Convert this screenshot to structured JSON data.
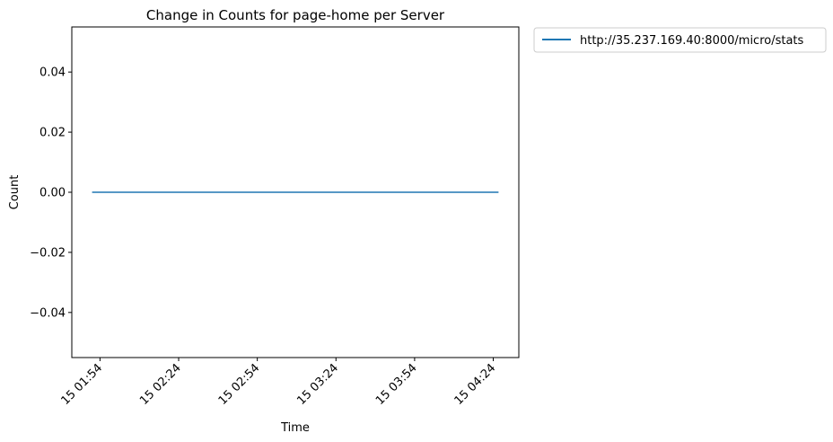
{
  "chart_data": {
    "type": "line",
    "title": "Change in Counts for page-home per Server",
    "xlabel": "Time",
    "ylabel": "Count",
    "ylim": [
      -0.055,
      0.055
    ],
    "yticks": [
      -0.04,
      -0.02,
      0.0,
      0.02,
      0.04
    ],
    "ytick_labels": [
      "−0.04",
      "−0.02",
      "0.00",
      "0.02",
      "0.04"
    ],
    "xticks": [
      "15 01:54",
      "15 02:24",
      "15 02:54",
      "15 03:24",
      "15 03:54",
      "15 04:24"
    ],
    "series": [
      {
        "name": "http://35.237.169.40:8000/micro/stats",
        "color": "#1f77b4",
        "points": [
          {
            "x": "15 01:51",
            "y": 0
          },
          {
            "x": "15 04:26",
            "y": 0
          }
        ]
      }
    ],
    "legend_position": "outside-top-right",
    "grid": false
  }
}
